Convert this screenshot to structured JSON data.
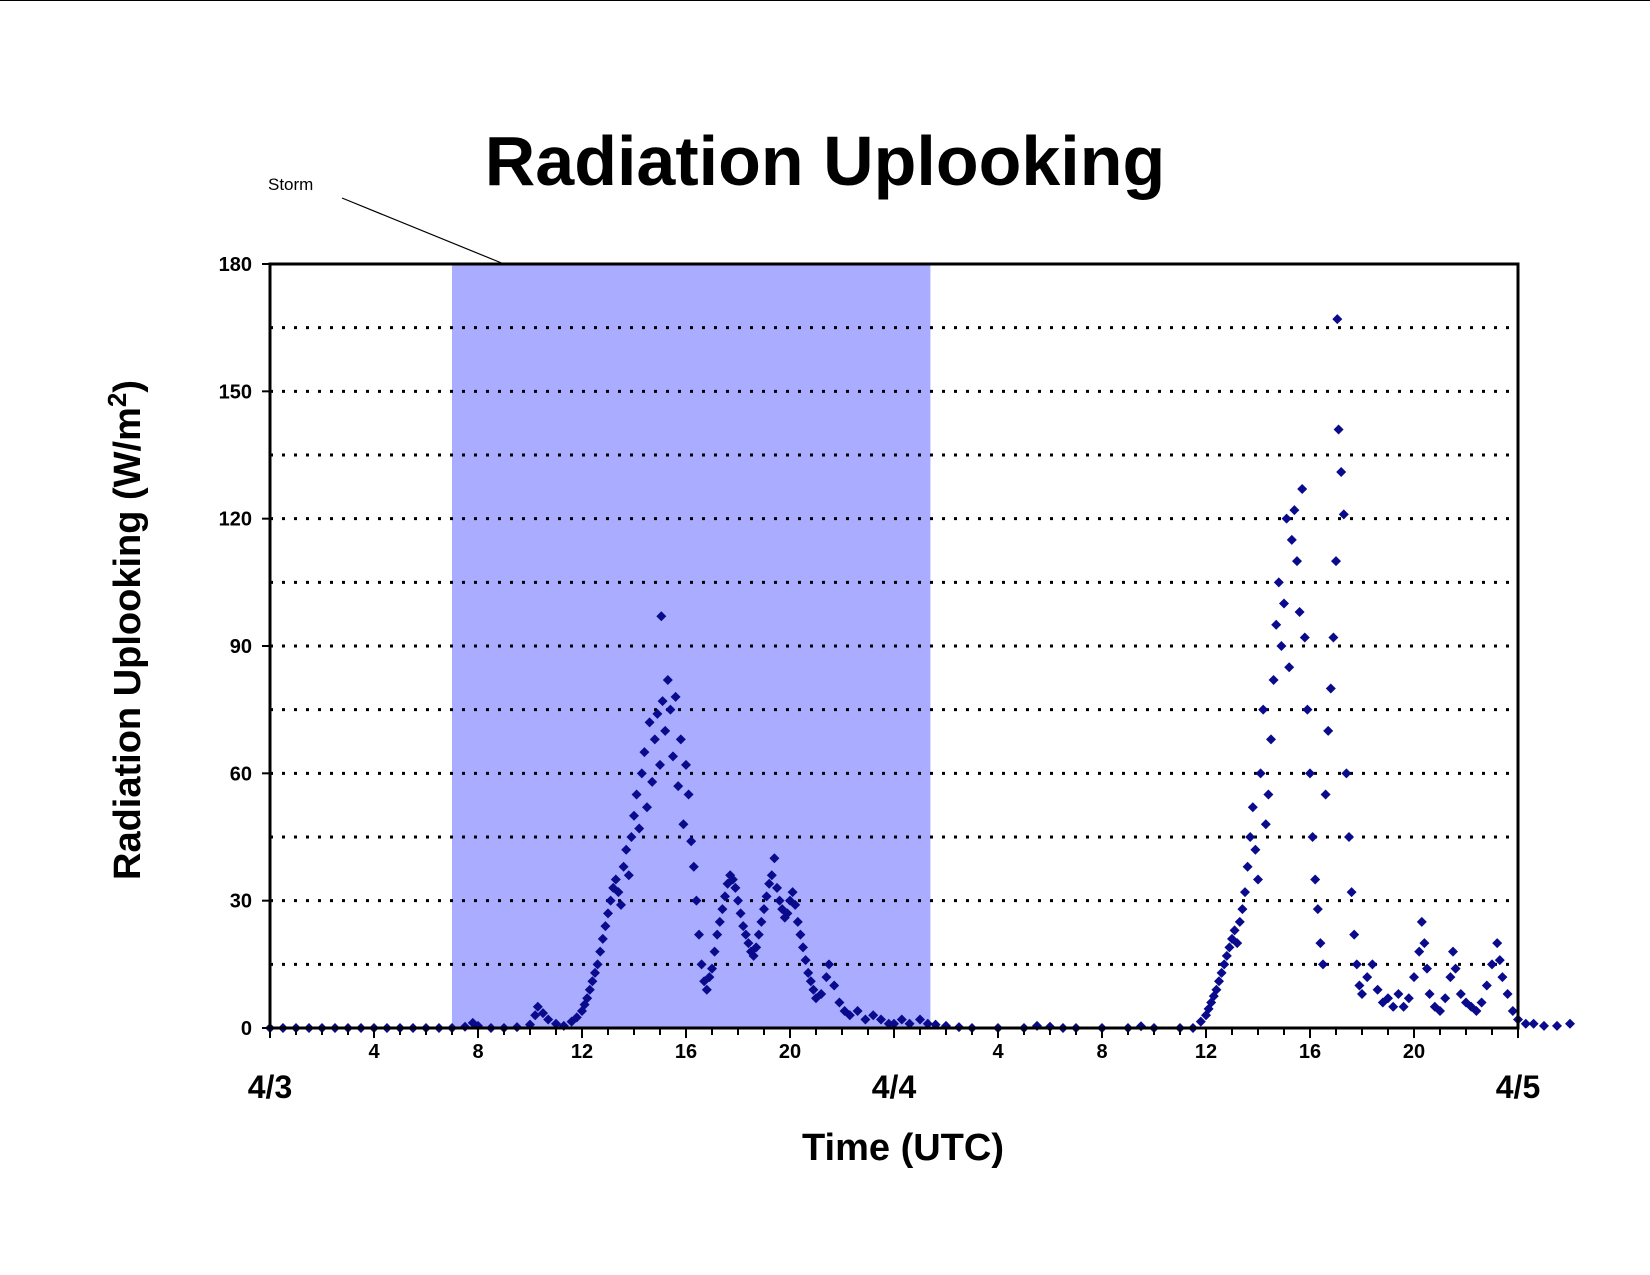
{
  "chart_data": {
    "type": "scatter",
    "title": "Radiation Uplooking",
    "xlabel": "Time (UTC)",
    "ylabel_main": "Radiation Uplooking (W/m",
    "ylabel_sup": "2",
    "ylabel_close": ")",
    "x_unit": "hours since 4/3 00:00 UTC",
    "xlim": [
      0,
      48
    ],
    "ylim": [
      0,
      180
    ],
    "y_ticks": [
      0,
      30,
      60,
      90,
      120,
      150,
      180
    ],
    "y_minor_grid": [
      15,
      30,
      45,
      60,
      75,
      90,
      105,
      120,
      135,
      150,
      165
    ],
    "grid": "horizontal dotted",
    "x_hour_ticks": [
      {
        "x": 4,
        "label": "4"
      },
      {
        "x": 8,
        "label": "8"
      },
      {
        "x": 12,
        "label": "12"
      },
      {
        "x": 16,
        "label": "16"
      },
      {
        "x": 20,
        "label": "20"
      },
      {
        "x": 28,
        "label": "4"
      },
      {
        "x": 32,
        "label": "8"
      },
      {
        "x": 36,
        "label": "12"
      },
      {
        "x": 40,
        "label": "16"
      },
      {
        "x": 44,
        "label": "20"
      }
    ],
    "x_day_labels": [
      {
        "x": 0,
        "label": "4/3"
      },
      {
        "x": 24,
        "label": "4/4"
      },
      {
        "x": 48,
        "label": "4/5"
      }
    ],
    "annotation": {
      "text": "Storm",
      "span": [
        7,
        25.4
      ]
    },
    "colors": {
      "points": "#0a0a8c",
      "storm_band": "#a9acff",
      "frame": "#000000"
    },
    "series": [
      {
        "marker": "diamond",
        "points": [
          [
            0,
            0
          ],
          [
            0.5,
            0
          ],
          [
            1,
            0
          ],
          [
            1.5,
            0
          ],
          [
            2,
            0
          ],
          [
            2.5,
            0
          ],
          [
            3,
            0
          ],
          [
            3.5,
            0
          ],
          [
            4,
            0
          ],
          [
            4.5,
            0
          ],
          [
            5,
            0
          ],
          [
            5.5,
            0
          ],
          [
            6,
            0
          ],
          [
            6.5,
            0
          ],
          [
            7,
            0
          ],
          [
            7.5,
            0.3
          ],
          [
            7.8,
            1.2
          ],
          [
            8,
            0.5
          ],
          [
            8.5,
            0
          ],
          [
            9,
            0
          ],
          [
            9.5,
            0.2
          ],
          [
            10,
            0.8
          ],
          [
            10.2,
            3
          ],
          [
            10.3,
            5
          ],
          [
            10.5,
            3.5
          ],
          [
            10.7,
            2
          ],
          [
            11,
            1
          ],
          [
            11.3,
            0.5
          ],
          [
            11.6,
            1.5
          ],
          [
            11.8,
            2.5
          ],
          [
            12,
            4
          ],
          [
            12.1,
            5.5
          ],
          [
            12.2,
            7
          ],
          [
            12.3,
            9
          ],
          [
            12.4,
            11
          ],
          [
            12.5,
            13
          ],
          [
            12.6,
            15
          ],
          [
            12.7,
            18
          ],
          [
            12.8,
            21
          ],
          [
            12.9,
            24
          ],
          [
            13,
            27
          ],
          [
            13.1,
            30
          ],
          [
            13.2,
            33
          ],
          [
            13.3,
            35
          ],
          [
            13.4,
            32
          ],
          [
            13.5,
            29
          ],
          [
            13.6,
            38
          ],
          [
            13.7,
            42
          ],
          [
            13.8,
            36
          ],
          [
            13.9,
            45
          ],
          [
            14,
            50
          ],
          [
            14.1,
            55
          ],
          [
            14.2,
            47
          ],
          [
            14.3,
            60
          ],
          [
            14.4,
            65
          ],
          [
            14.5,
            52
          ],
          [
            14.6,
            72
          ],
          [
            14.7,
            58
          ],
          [
            14.8,
            68
          ],
          [
            14.9,
            74
          ],
          [
            15,
            62
          ],
          [
            15.05,
            97
          ],
          [
            15.1,
            77
          ],
          [
            15.2,
            70
          ],
          [
            15.3,
            82
          ],
          [
            15.4,
            75
          ],
          [
            15.5,
            64
          ],
          [
            15.6,
            78
          ],
          [
            15.7,
            57
          ],
          [
            15.8,
            68
          ],
          [
            15.9,
            48
          ],
          [
            16,
            62
          ],
          [
            16.1,
            55
          ],
          [
            16.2,
            44
          ],
          [
            16.3,
            38
          ],
          [
            16.4,
            30
          ],
          [
            16.5,
            22
          ],
          [
            16.6,
            15
          ],
          [
            16.7,
            11
          ],
          [
            16.8,
            9
          ],
          [
            16.9,
            12
          ],
          [
            17,
            14
          ],
          [
            17.1,
            18
          ],
          [
            17.2,
            22
          ],
          [
            17.3,
            25
          ],
          [
            17.4,
            28
          ],
          [
            17.5,
            31
          ],
          [
            17.6,
            34
          ],
          [
            17.7,
            36
          ],
          [
            17.8,
            35
          ],
          [
            17.9,
            33
          ],
          [
            18,
            30
          ],
          [
            18.1,
            27
          ],
          [
            18.2,
            24
          ],
          [
            18.3,
            22
          ],
          [
            18.4,
            20
          ],
          [
            18.5,
            18
          ],
          [
            18.6,
            17
          ],
          [
            18.7,
            19
          ],
          [
            18.8,
            22
          ],
          [
            18.9,
            25
          ],
          [
            19,
            28
          ],
          [
            19.1,
            31
          ],
          [
            19.2,
            34
          ],
          [
            19.3,
            36
          ],
          [
            19.4,
            40
          ],
          [
            19.5,
            33
          ],
          [
            19.6,
            30
          ],
          [
            19.7,
            28
          ],
          [
            19.8,
            26
          ],
          [
            19.9,
            27
          ],
          [
            20,
            30
          ],
          [
            20.1,
            32
          ],
          [
            20.2,
            29
          ],
          [
            20.3,
            25
          ],
          [
            20.4,
            22
          ],
          [
            20.5,
            19
          ],
          [
            20.6,
            16
          ],
          [
            20.7,
            13
          ],
          [
            20.8,
            11
          ],
          [
            20.9,
            9
          ],
          [
            21,
            7
          ],
          [
            21.2,
            8
          ],
          [
            21.4,
            12
          ],
          [
            21.5,
            15
          ],
          [
            21.7,
            10
          ],
          [
            21.9,
            6
          ],
          [
            22.1,
            4
          ],
          [
            22.3,
            3
          ],
          [
            22.6,
            4
          ],
          [
            22.9,
            2
          ],
          [
            23.2,
            3
          ],
          [
            23.5,
            2
          ],
          [
            23.8,
            1
          ],
          [
            24,
            1
          ],
          [
            24.3,
            2
          ],
          [
            24.6,
            1
          ],
          [
            25,
            2
          ],
          [
            25.3,
            1
          ],
          [
            25.6,
            0.8
          ],
          [
            26,
            0.5
          ],
          [
            26.5,
            0.2
          ],
          [
            27,
            0
          ],
          [
            28,
            0
          ],
          [
            29,
            0
          ],
          [
            29.5,
            0.5
          ],
          [
            30,
            0.3
          ],
          [
            30.5,
            0
          ],
          [
            31,
            0
          ],
          [
            32,
            0
          ],
          [
            33,
            0
          ],
          [
            33.5,
            0.4
          ],
          [
            34,
            0
          ],
          [
            35,
            0
          ],
          [
            35.5,
            0
          ],
          [
            35.8,
            1.5
          ],
          [
            36,
            3
          ],
          [
            36.1,
            4.5
          ],
          [
            36.2,
            6
          ],
          [
            36.3,
            7.5
          ],
          [
            36.4,
            9
          ],
          [
            36.5,
            11
          ],
          [
            36.6,
            13
          ],
          [
            36.7,
            15
          ],
          [
            36.8,
            17
          ],
          [
            36.9,
            19
          ],
          [
            37,
            21
          ],
          [
            37.1,
            23
          ],
          [
            37.2,
            20
          ],
          [
            37.3,
            25
          ],
          [
            37.4,
            28
          ],
          [
            37.5,
            32
          ],
          [
            37.6,
            38
          ],
          [
            37.7,
            45
          ],
          [
            37.8,
            52
          ],
          [
            37.9,
            42
          ],
          [
            38,
            35
          ],
          [
            38.1,
            60
          ],
          [
            38.2,
            75
          ],
          [
            38.3,
            48
          ],
          [
            38.4,
            55
          ],
          [
            38.5,
            68
          ],
          [
            38.6,
            82
          ],
          [
            38.7,
            95
          ],
          [
            38.8,
            105
          ],
          [
            38.9,
            90
          ],
          [
            39,
            100
          ],
          [
            39.1,
            120
          ],
          [
            39.2,
            85
          ],
          [
            39.3,
            115
          ],
          [
            39.4,
            122
          ],
          [
            39.5,
            110
          ],
          [
            39.6,
            98
          ],
          [
            39.7,
            127
          ],
          [
            39.8,
            92
          ],
          [
            39.9,
            75
          ],
          [
            40,
            60
          ],
          [
            40.1,
            45
          ],
          [
            40.2,
            35
          ],
          [
            40.3,
            28
          ],
          [
            40.4,
            20
          ],
          [
            40.5,
            15
          ],
          [
            40.6,
            55
          ],
          [
            40.7,
            70
          ],
          [
            40.8,
            80
          ],
          [
            40.9,
            92
          ],
          [
            41,
            110
          ],
          [
            41.05,
            167
          ],
          [
            41.1,
            141
          ],
          [
            41.2,
            131
          ],
          [
            41.3,
            121
          ],
          [
            41.4,
            60
          ],
          [
            41.5,
            45
          ],
          [
            41.6,
            32
          ],
          [
            41.7,
            22
          ],
          [
            41.8,
            15
          ],
          [
            41.9,
            10
          ],
          [
            42,
            8
          ],
          [
            42.2,
            12
          ],
          [
            42.4,
            15
          ],
          [
            42.6,
            9
          ],
          [
            42.8,
            6
          ],
          [
            43,
            7
          ],
          [
            43.2,
            5
          ],
          [
            43.4,
            8
          ],
          [
            43.6,
            5
          ],
          [
            43.8,
            7
          ],
          [
            44,
            12
          ],
          [
            44.2,
            18
          ],
          [
            44.3,
            25
          ],
          [
            44.4,
            20
          ],
          [
            44.5,
            14
          ],
          [
            44.6,
            8
          ],
          [
            44.8,
            5
          ],
          [
            45,
            4
          ],
          [
            45.2,
            7
          ],
          [
            45.4,
            12
          ],
          [
            45.5,
            18
          ],
          [
            45.6,
            14
          ],
          [
            45.8,
            8
          ],
          [
            46,
            6
          ],
          [
            46.2,
            5
          ],
          [
            46.4,
            4
          ],
          [
            46.6,
            6
          ],
          [
            46.8,
            10
          ],
          [
            47,
            15
          ],
          [
            47.2,
            20
          ],
          [
            47.3,
            16
          ],
          [
            47.4,
            12
          ],
          [
            47.6,
            8
          ],
          [
            47.8,
            4
          ],
          [
            48,
            2
          ],
          [
            48.3,
            1
          ],
          [
            48.6,
            1
          ],
          [
            49,
            0.5
          ],
          [
            49.5,
            0.5
          ],
          [
            50,
            1
          ]
        ]
      }
    ]
  }
}
